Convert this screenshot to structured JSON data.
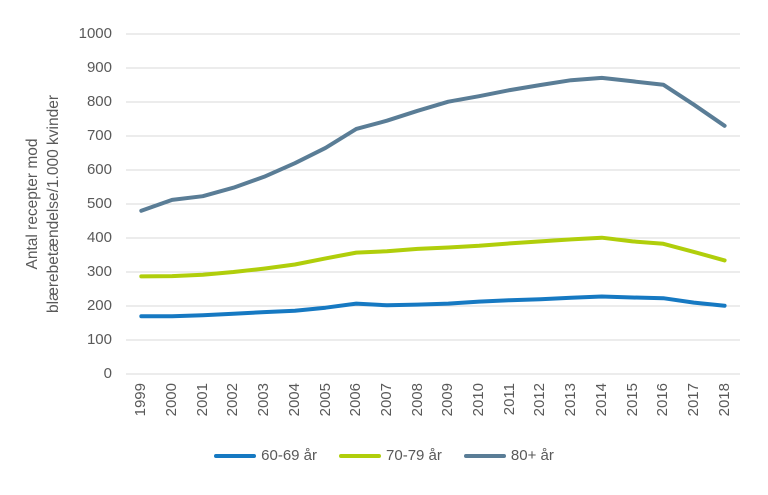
{
  "chart_data": {
    "type": "line",
    "title": "",
    "ylabel": "Antal recepter mod blærebetændelse/1.000 kvinder",
    "ylabel_lines": [
      "Antal recepter mod",
      "blærebetændelse/1.000 kvinder"
    ],
    "xlabel": "",
    "x": [
      1999,
      2000,
      2001,
      2002,
      2003,
      2004,
      2005,
      2006,
      2007,
      2008,
      2009,
      2010,
      2011,
      2012,
      2013,
      2014,
      2015,
      2016,
      2017,
      2018
    ],
    "series": [
      {
        "name": "60-69 år",
        "color": "#1679C2",
        "values": [
          170,
          170,
          173,
          177,
          182,
          186,
          195,
          207,
          202,
          204,
          207,
          213,
          217,
          220,
          224,
          228,
          225,
          223,
          210,
          201
        ]
      },
      {
        "name": "70-79 år",
        "color": "#B0CE0B",
        "values": [
          287,
          288,
          292,
          300,
          310,
          322,
          340,
          357,
          361,
          368,
          372,
          377,
          384,
          390,
          396,
          401,
          390,
          383,
          359,
          334
        ]
      },
      {
        "name": "80+ år",
        "color": "#5A7D96",
        "values": [
          480,
          512,
          523,
          548,
          580,
          620,
          665,
          721,
          745,
          774,
          801,
          817,
          835,
          850,
          864,
          871,
          861,
          851,
          792,
          730
        ]
      }
    ],
    "ylim": [
      0,
      1000
    ],
    "ytick_step": 100,
    "ytick_labels": [
      "0",
      "100",
      "200",
      "300",
      "400",
      "500",
      "600",
      "700",
      "800",
      "900",
      "1000"
    ],
    "grid": true,
    "gridline_color": "#D9D9D9",
    "text_color": "#595959",
    "legend_position": "bottom"
  }
}
